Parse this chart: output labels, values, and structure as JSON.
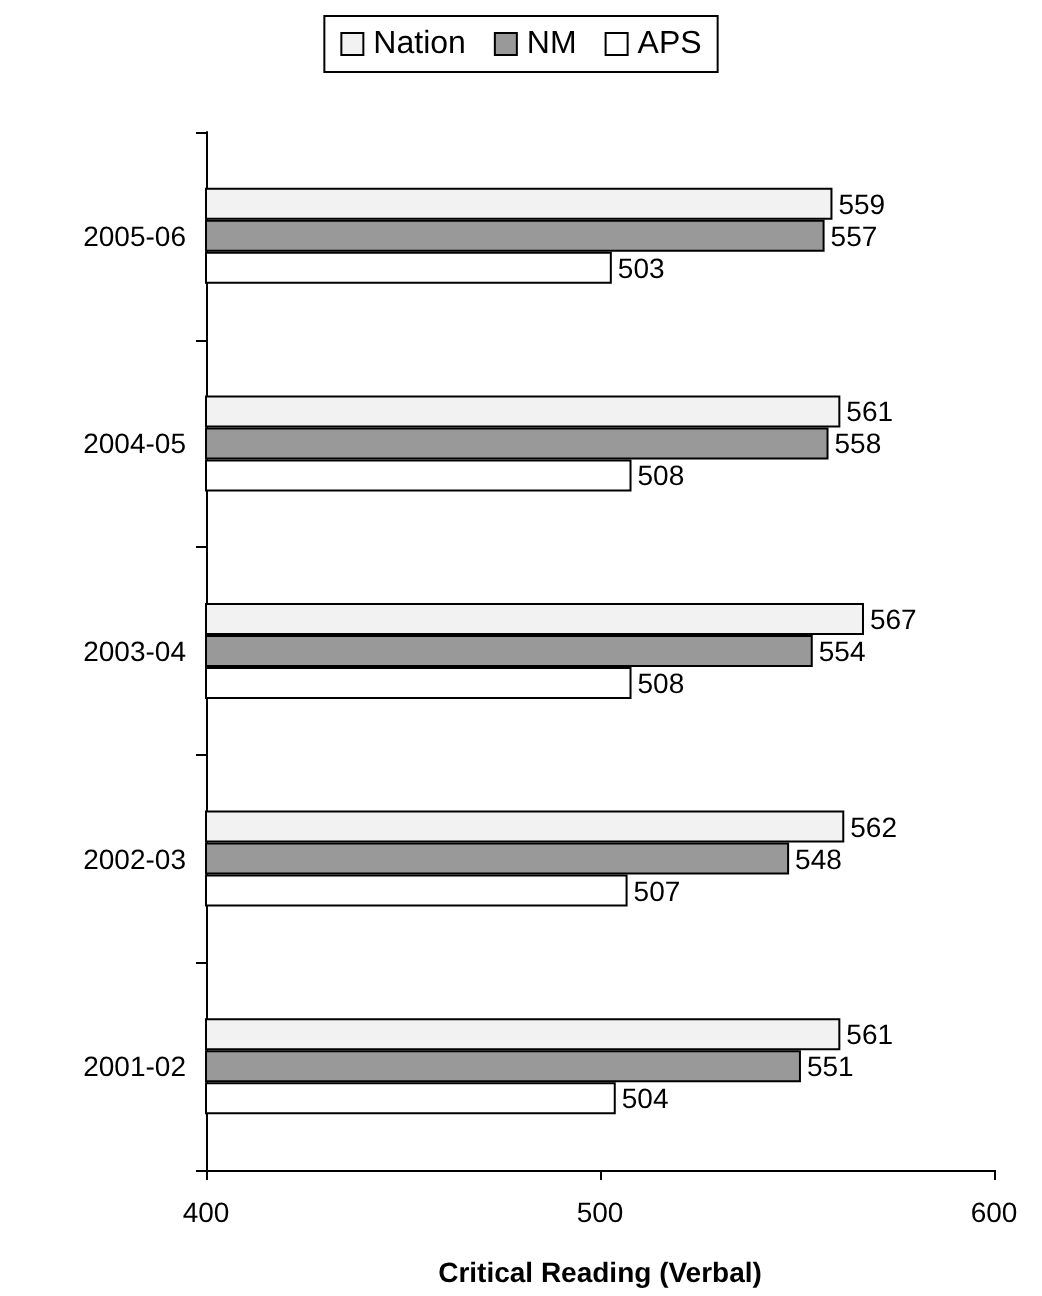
{
  "chart_data": {
    "type": "bar",
    "orientation": "horizontal",
    "xlabel": "Critical Reading (Verbal)",
    "categories": [
      "2005-06",
      "2004-05",
      "2003-04",
      "2002-03",
      "2001-02"
    ],
    "series": [
      {
        "name": "Nation",
        "color": "#f2f2f2",
        "values": [
          559,
          561,
          567,
          562,
          561
        ]
      },
      {
        "name": "NM",
        "color": "#999999",
        "values": [
          557,
          558,
          554,
          548,
          551
        ]
      },
      {
        "name": "APS",
        "color": "#ffffff",
        "values": [
          503,
          508,
          508,
          507,
          504
        ]
      }
    ],
    "xlim": [
      400,
      600
    ],
    "xticks": [
      400,
      500,
      600
    ],
    "grid": false,
    "legend": "top",
    "data_labels": true
  }
}
